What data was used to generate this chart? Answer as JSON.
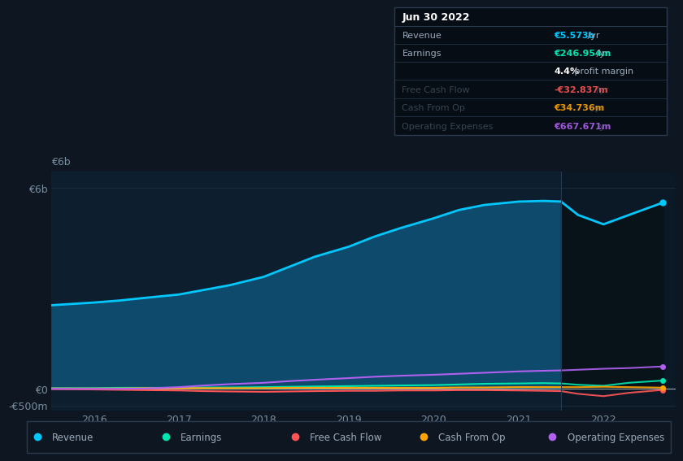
{
  "bg_color": "#0e1621",
  "plot_bg_color": "#0d1e2e",
  "forecast_bg_color": "#0a1520",
  "grid_color": "#1e3348",
  "text_color": "#7a8fa0",
  "title_color": "#ffffff",
  "years": [
    2015.5,
    2016.0,
    2016.3,
    2016.6,
    2017.0,
    2017.3,
    2017.6,
    2018.0,
    2018.3,
    2018.6,
    2019.0,
    2019.3,
    2019.6,
    2020.0,
    2020.3,
    2020.6,
    2021.0,
    2021.3,
    2021.5,
    2021.7,
    2022.0,
    2022.3,
    2022.7
  ],
  "revenue": [
    2.5,
    2.58,
    2.64,
    2.72,
    2.82,
    2.96,
    3.1,
    3.35,
    3.65,
    3.95,
    4.25,
    4.55,
    4.8,
    5.1,
    5.35,
    5.5,
    5.6,
    5.62,
    5.6,
    5.2,
    4.92,
    5.2,
    5.57
  ],
  "earnings": [
    0.02,
    0.02,
    0.03,
    0.03,
    0.03,
    0.04,
    0.04,
    0.05,
    0.06,
    0.07,
    0.08,
    0.09,
    0.1,
    0.11,
    0.13,
    0.15,
    0.16,
    0.17,
    0.16,
    0.12,
    0.09,
    0.18,
    0.247
  ],
  "free_cash_flow": [
    -0.01,
    -0.02,
    -0.03,
    -0.04,
    -0.05,
    -0.07,
    -0.08,
    -0.09,
    -0.08,
    -0.07,
    -0.06,
    -0.06,
    -0.05,
    -0.05,
    -0.04,
    -0.04,
    -0.05,
    -0.06,
    -0.07,
    -0.15,
    -0.22,
    -0.12,
    -0.033
  ],
  "cash_from_op": [
    0.01,
    0.01,
    0.01,
    0.02,
    0.02,
    0.02,
    0.02,
    0.02,
    0.03,
    0.03,
    0.03,
    0.03,
    0.03,
    0.03,
    0.04,
    0.04,
    0.05,
    0.05,
    0.05,
    0.05,
    0.06,
    0.05,
    0.035
  ],
  "op_expenses": [
    0.0,
    0.0,
    0.0,
    0.01,
    0.05,
    0.1,
    0.14,
    0.18,
    0.23,
    0.27,
    0.32,
    0.36,
    0.39,
    0.42,
    0.45,
    0.48,
    0.52,
    0.54,
    0.55,
    0.57,
    0.6,
    0.62,
    0.668
  ],
  "revenue_color": "#00c8ff",
  "earnings_color": "#00e5b0",
  "free_cash_flow_color": "#ff5555",
  "cash_from_op_color": "#ffa500",
  "op_expenses_color": "#b060f0",
  "revenue_fill_color": "#0d4a6b",
  "ylim_min": -0.65,
  "ylim_max": 6.5,
  "xlim_min": 2015.5,
  "xlim_max": 2022.85,
  "forecast_start": 2021.5,
  "ytick_positions": [
    -0.5,
    0.0,
    6.0
  ],
  "ytick_labels": [
    "-€500m",
    "€0",
    "€6b"
  ],
  "xticks": [
    2016,
    2017,
    2018,
    2019,
    2020,
    2021,
    2022
  ],
  "xtick_labels": [
    "2016",
    "2017",
    "2018",
    "2019",
    "2020",
    "2021",
    "2022"
  ],
  "tooltip_title": "Jun 30 2022",
  "tooltip_rows": [
    {
      "label": "Revenue",
      "value": "€5.573b",
      "suffix": " /yr",
      "color": "#00c8ff",
      "dimmed": false
    },
    {
      "label": "Earnings",
      "value": "€246.954m",
      "suffix": " /yr",
      "color": "#00e5b0",
      "dimmed": false
    },
    {
      "label": "",
      "value": "4.4%",
      "suffix": " profit margin",
      "color": "#ffffff",
      "dimmed": false
    },
    {
      "label": "Free Cash Flow",
      "value": "-€32.837m",
      "suffix": " /yr",
      "color": "#ff5555",
      "dimmed": true
    },
    {
      "label": "Cash From Op",
      "value": "€34.736m",
      "suffix": " /yr",
      "color": "#ffa500",
      "dimmed": true
    },
    {
      "label": "Operating Expenses",
      "value": "€667.671m",
      "suffix": " /yr",
      "color": "#b060f0",
      "dimmed": true
    }
  ],
  "legend_entries": [
    {
      "label": "Revenue",
      "color": "#00c8ff"
    },
    {
      "label": "Earnings",
      "color": "#00e5b0"
    },
    {
      "label": "Free Cash Flow",
      "color": "#ff5555"
    },
    {
      "label": "Cash From Op",
      "color": "#ffa500"
    },
    {
      "label": "Operating Expenses",
      "color": "#b060f0"
    }
  ]
}
